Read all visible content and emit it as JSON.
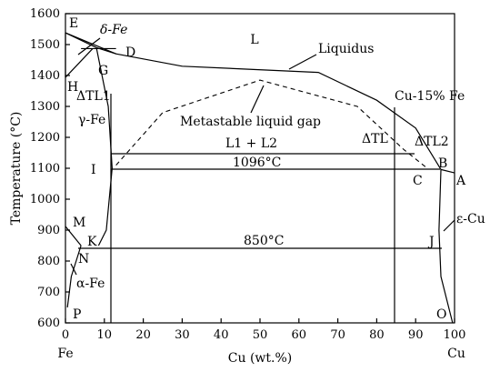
{
  "axes": {
    "ylabel": "Temperature (°C)",
    "xlabel": "Cu (wt.%)",
    "x_left_end_label": "Fe",
    "x_right_end_label": "Cu",
    "x_ticks": [
      "0",
      "10",
      "20",
      "30",
      "40",
      "50",
      "60",
      "70",
      "80",
      "90",
      "100"
    ],
    "y_ticks": [
      "600",
      "700",
      "800",
      "900",
      "1000",
      "1100",
      "1200",
      "1300",
      "1400",
      "1500",
      "1600"
    ],
    "xlim": [
      0,
      100
    ],
    "ylim": [
      600,
      1600
    ]
  },
  "regions": {
    "liquid": "L",
    "delta_fe": "δ-Fe",
    "gamma_fe": "γ-Fe",
    "alpha_fe": "α-Fe",
    "epsilon_cu": "ε-Cu",
    "two_liquids": "L1 + L2",
    "liquidus": "Liquidus",
    "metastable_gap": "Metastable liquid gap",
    "composition": "Cu-15% Fe"
  },
  "isotherms": {
    "upper": "1096°C",
    "lower": "850°C"
  },
  "points": [
    "E",
    "D",
    "G",
    "H",
    "I",
    "B",
    "A",
    "C",
    "M",
    "K",
    "N",
    "J",
    "P",
    "O"
  ],
  "delta_t": {
    "dt_l1": "ΔTL1",
    "dt_l": "ΔTL",
    "dt_l2": "ΔTL2"
  },
  "curves": {
    "liquidus": [
      [
        0,
        1538
      ],
      [
        13,
        1470
      ],
      [
        30,
        1430
      ],
      [
        65,
        1410
      ],
      [
        80,
        1320
      ],
      [
        90,
        1230
      ],
      [
        96.5,
        1096
      ]
    ],
    "delta_fe_left": [
      [
        0,
        1538
      ],
      [
        0,
        1394
      ]
    ],
    "delta_fe_lower": [
      [
        0,
        1394
      ],
      [
        7,
        1487
      ]
    ],
    "peritectic_line": [
      [
        4,
        1487
      ],
      [
        13,
        1487
      ]
    ],
    "gamma_upper": [
      [
        0,
        1538
      ],
      [
        8,
        1490
      ],
      [
        13,
        1470
      ]
    ],
    "gamma_solvus_left": [
      [
        0,
        912
      ],
      [
        4,
        850
      ]
    ],
    "gamma_solidus": [
      [
        8,
        1487
      ],
      [
        11,
        1300
      ],
      [
        12,
        1100
      ],
      [
        10.5,
        900
      ],
      [
        8.5,
        850
      ]
    ],
    "alpha_solvus": [
      [
        4,
        850
      ],
      [
        1.5,
        750
      ],
      [
        0.5,
        650
      ]
    ],
    "gap": [
      [
        13,
        1110
      ],
      [
        25,
        1280
      ],
      [
        50,
        1385
      ],
      [
        75,
        1300
      ],
      [
        87,
        1160
      ],
      [
        93,
        1100
      ]
    ],
    "epsilon_solvus": [
      [
        96.5,
        1096
      ],
      [
        96,
        900
      ],
      [
        96.5,
        750
      ],
      [
        99.5,
        600
      ]
    ],
    "epsilon_solidus": [
      [
        96.5,
        1096
      ],
      [
        100,
        1085
      ]
    ]
  }
}
